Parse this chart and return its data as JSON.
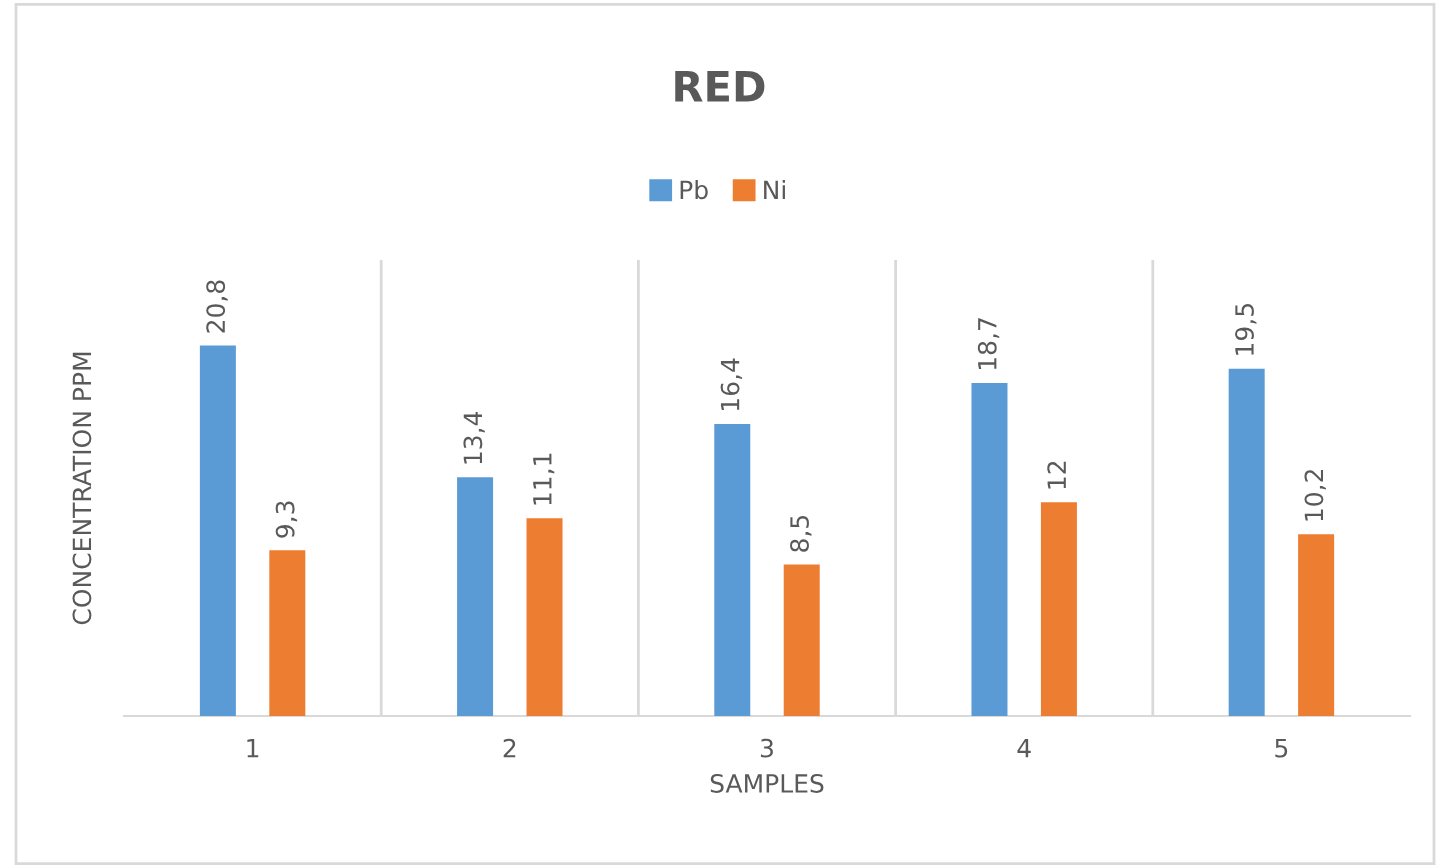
{
  "chart_data": {
    "type": "bar",
    "title": "RED",
    "xlabel": "SAMPLES",
    "ylabel": "CONCENTRATION PPM",
    "categories": [
      "1",
      "2",
      "3",
      "4",
      "5"
    ],
    "series": [
      {
        "name": "Pb",
        "color": "#5b9bd5",
        "values": [
          20.8,
          13.4,
          16.4,
          18.7,
          19.5
        ],
        "value_labels": [
          "20,8",
          "13,4",
          "16,4",
          "18,7",
          "19,5"
        ]
      },
      {
        "name": "Ni",
        "color": "#ed7d31",
        "values": [
          9.3,
          11.1,
          8.5,
          12,
          10.2
        ],
        "value_labels": [
          "9,3",
          "11,1",
          "8,5",
          "12",
          "10,2"
        ]
      }
    ],
    "ylim": [
      0,
      25.6
    ],
    "grid": "x",
    "legend": "top"
  }
}
